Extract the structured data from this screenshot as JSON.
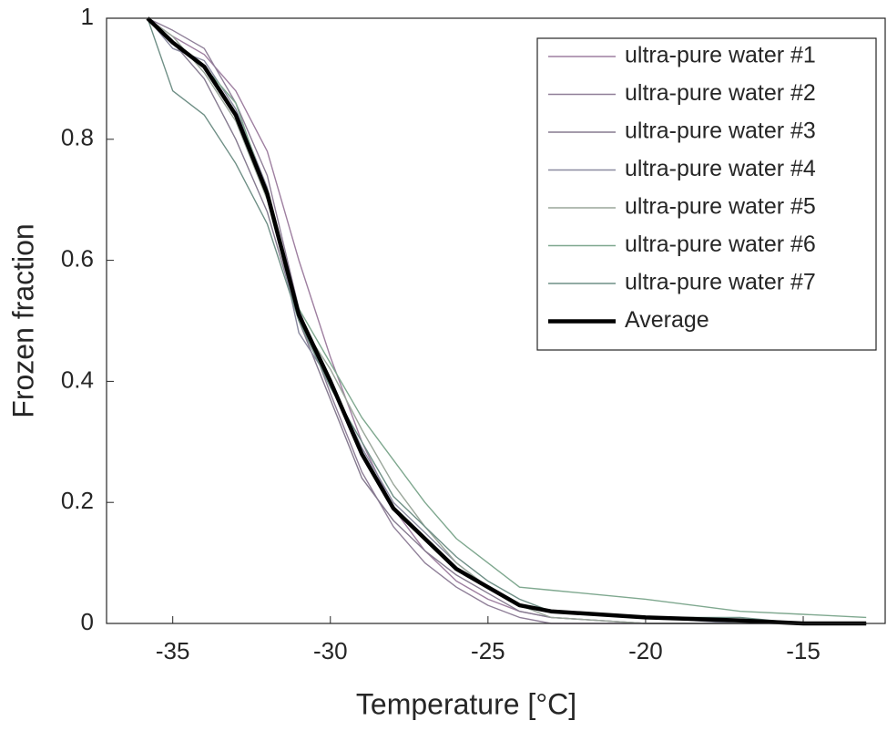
{
  "chart_data": {
    "type": "line",
    "xlabel": "Temperature [°C]",
    "ylabel": "Frozen fraction",
    "x": [
      -35.8,
      -35,
      -34,
      -33,
      -32,
      -31,
      -30,
      -29,
      -28,
      -27,
      -26,
      -25,
      -24,
      -23,
      -20,
      -17,
      -15,
      -13
    ],
    "series": [
      {
        "name": "ultra-pure water #1",
        "color": "#9e7fa0",
        "values": [
          1,
          0.97,
          0.94,
          0.88,
          0.78,
          0.6,
          0.44,
          0.3,
          0.19,
          0.12,
          0.07,
          0.04,
          0.02,
          0.01,
          0,
          0,
          0,
          0
        ]
      },
      {
        "name": "ultra-pure water #2",
        "color": "#8f7f98",
        "values": [
          1,
          0.98,
          0.95,
          0.86,
          0.74,
          0.52,
          0.38,
          0.25,
          0.16,
          0.1,
          0.06,
          0.03,
          0.01,
          0,
          0,
          0,
          0,
          0
        ]
      },
      {
        "name": "ultra-pure water #3",
        "color": "#857a8f",
        "values": [
          1,
          0.96,
          0.9,
          0.8,
          0.68,
          0.5,
          0.37,
          0.24,
          0.17,
          0.12,
          0.08,
          0.05,
          0.02,
          0.01,
          0,
          0,
          0,
          0
        ]
      },
      {
        "name": "ultra-pure water #4",
        "color": "#8a8aa0",
        "values": [
          1,
          0.95,
          0.93,
          0.85,
          0.72,
          0.48,
          0.4,
          0.29,
          0.2,
          0.15,
          0.1,
          0.06,
          0.03,
          0.02,
          0.01,
          0,
          0,
          0
        ]
      },
      {
        "name": "ultra-pure water #5",
        "color": "#9aa69a",
        "values": [
          1,
          0.97,
          0.91,
          0.83,
          0.7,
          0.5,
          0.42,
          0.32,
          0.23,
          0.16,
          0.1,
          0.06,
          0.03,
          0.01,
          0,
          0,
          0,
          0
        ]
      },
      {
        "name": "ultra-pure water #6",
        "color": "#7fa88f",
        "values": [
          1,
          0.96,
          0.92,
          0.86,
          0.71,
          0.52,
          0.43,
          0.34,
          0.27,
          0.2,
          0.14,
          0.1,
          0.06,
          0.055,
          0.04,
          0.02,
          0.015,
          0.01
        ]
      },
      {
        "name": "ultra-pure water #7",
        "color": "#6f8f86",
        "values": [
          1,
          0.88,
          0.84,
          0.76,
          0.66,
          0.5,
          0.39,
          0.3,
          0.21,
          0.16,
          0.11,
          0.07,
          0.04,
          0.02,
          0.01,
          0.01,
          0,
          0
        ]
      },
      {
        "name": "Average",
        "color": "#000000",
        "values": [
          1,
          0.96,
          0.92,
          0.84,
          0.71,
          0.51,
          0.4,
          0.28,
          0.19,
          0.14,
          0.09,
          0.06,
          0.03,
          0.02,
          0.01,
          0.005,
          0,
          0
        ]
      }
    ],
    "xlim": [
      -37.1,
      -12.4
    ],
    "xticks": [
      -35,
      -30,
      -25,
      -20,
      -15
    ],
    "ylim": [
      0,
      1
    ],
    "yticks": [
      0,
      0.2,
      0.4,
      0.6,
      0.8,
      1
    ],
    "legend": "upper right"
  }
}
